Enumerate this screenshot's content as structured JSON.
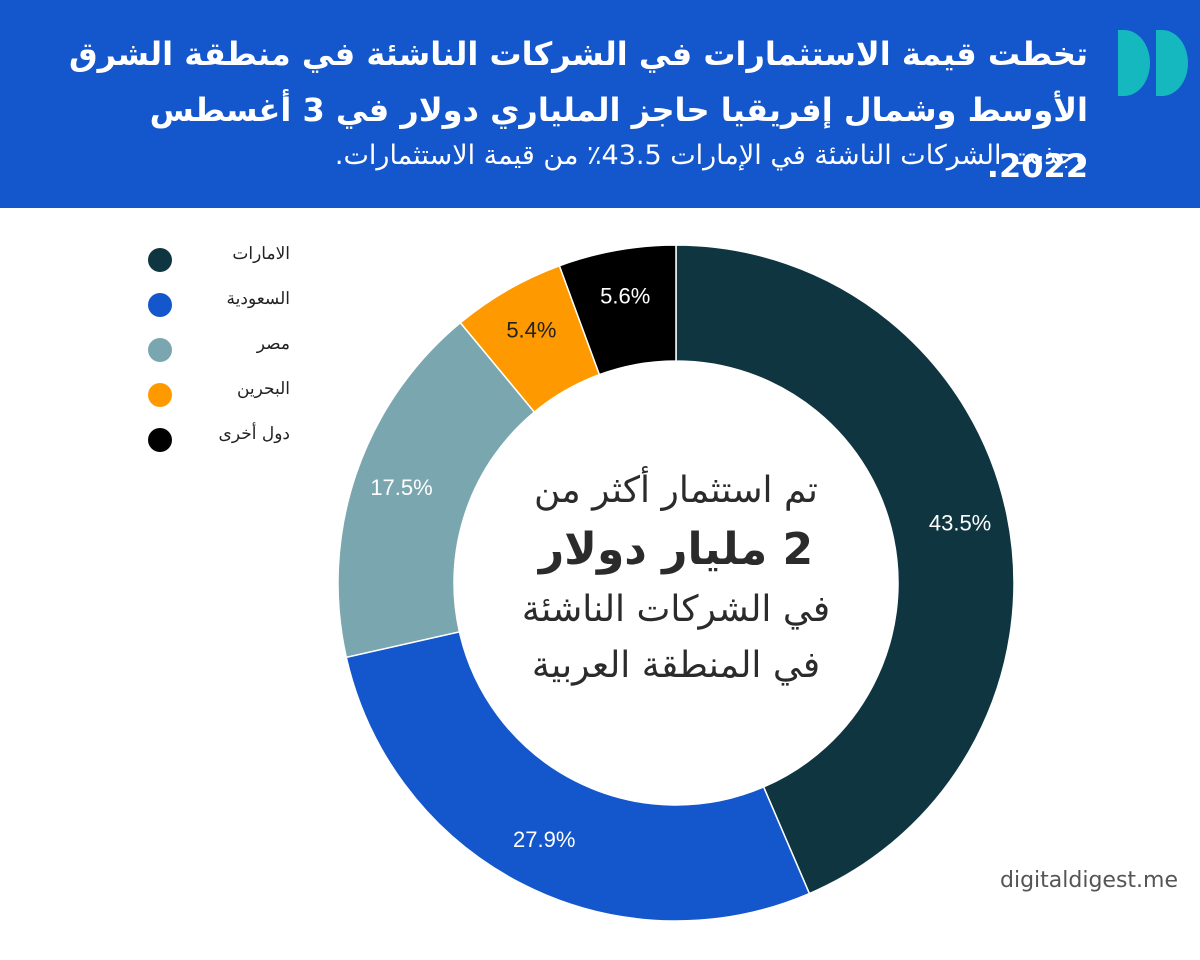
{
  "header": {
    "title": "تخطت قيمة الاستثمارات في الشركات الناشئة في منطقة الشرق الأوسط وشمال إفريقيا حاجز الملياري دولار في 3 أغسطس 2022.",
    "subtitle": "وجذبت الشركات الناشئة في الإمارات 43.5٪ من قيمة الاستثمارات."
  },
  "logo": {
    "icon": "digitaldigest-logo-icon",
    "color": "#15b8bf"
  },
  "center": {
    "line1": "تم استثمار أكثر من",
    "line2": "2 مليار دولار",
    "line3": "في الشركات الناشئة",
    "line4": "في المنطقة العربية"
  },
  "watermark": "digitaldigest.me",
  "legend": {
    "items": [
      {
        "label": "الامارات",
        "color": "#0e3540"
      },
      {
        "label": "السعودية",
        "color": "#1456cc"
      },
      {
        "label": "مصر",
        "color": "#7aa6b0"
      },
      {
        "label": "البحرين",
        "color": "#ff9900"
      },
      {
        "label": "دول أخرى",
        "color": "#000000"
      }
    ]
  },
  "chart_data": {
    "type": "pie",
    "donut": true,
    "categories": [
      "الامارات",
      "السعودية",
      "مصر",
      "البحرين",
      "دول أخرى"
    ],
    "values": [
      43.5,
      27.9,
      17.5,
      5.4,
      5.6
    ],
    "labels": [
      "43.5%",
      "27.9%",
      "17.5%",
      "5.4%",
      "5.6%"
    ],
    "colors": [
      "#0e3540",
      "#1456cc",
      "#7aa6b0",
      "#ff9900",
      "#000000"
    ],
    "label_colors": [
      "#ffffff",
      "#ffffff",
      "#ffffff",
      "#222222",
      "#ffffff"
    ],
    "legend_position": "top-left"
  }
}
